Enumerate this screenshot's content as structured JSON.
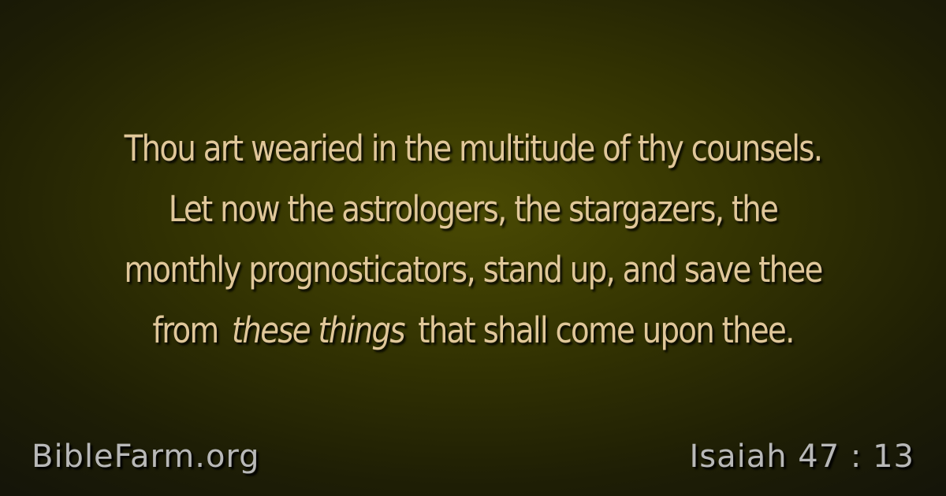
{
  "verse": {
    "line1": "Thou art wearied in the multitude of thy counsels.",
    "line2": "Let now the astrologers, the stargazers, the",
    "line3": "monthly prognosticators, stand up, and save thee",
    "line4_before": "from",
    "line4_italic": "these things",
    "line4_after": "that shall come upon thee."
  },
  "footer": {
    "site": "BibleFarm.org",
    "reference": "Isaiah 47 : 13"
  },
  "colors": {
    "text": "#e0c79a",
    "footer_text": "#b8b8b8",
    "background_center": "#4a4a03",
    "background_edge": "#151509"
  }
}
